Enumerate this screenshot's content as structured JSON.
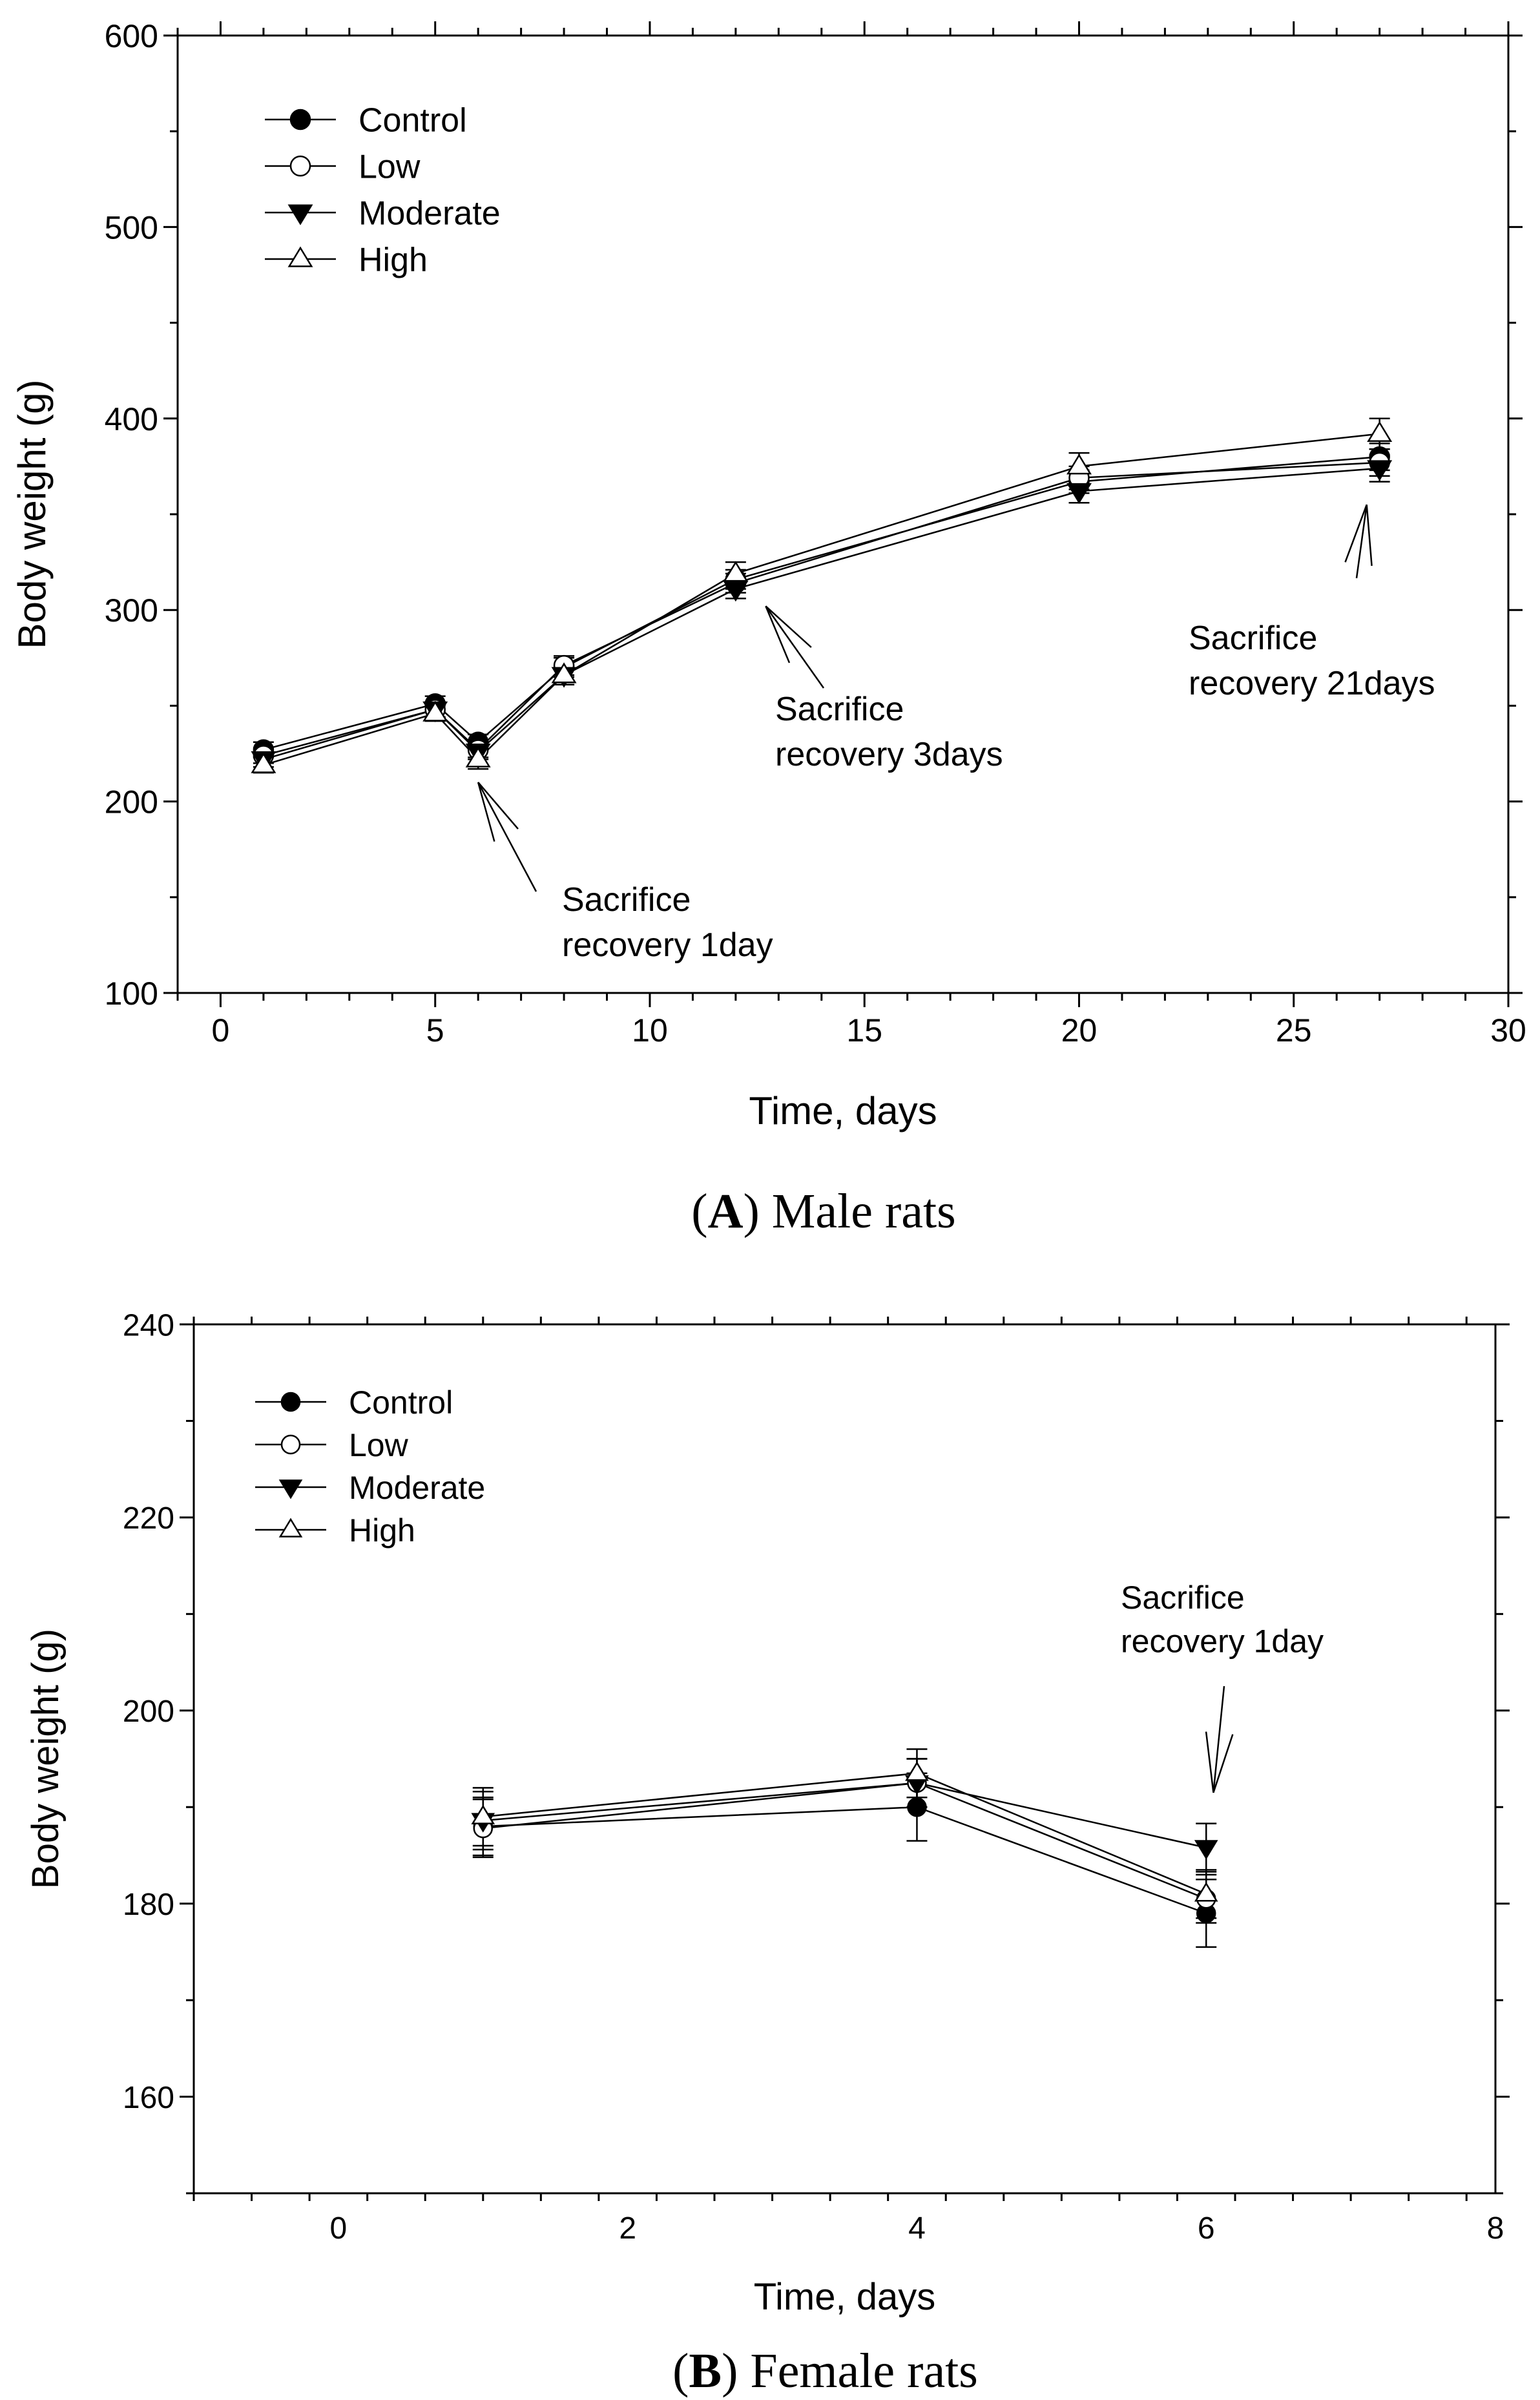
{
  "chart_data": [
    {
      "panel": "A",
      "type": "line",
      "caption_letter": "A",
      "caption_text": ") Male rats",
      "xlabel": "Time, days",
      "ylabel": "Body weight (g)",
      "xlim": [
        -1,
        30
      ],
      "ylim": [
        100,
        600
      ],
      "xticks": [
        0,
        5,
        10,
        15,
        20,
        25,
        30
      ],
      "yticks": [
        100,
        200,
        300,
        400,
        500,
        600
      ],
      "x": [
        1,
        5,
        6,
        8,
        12,
        20,
        27
      ],
      "series": [
        {
          "name": "Control",
          "marker": "circle-filled",
          "values": [
            227,
            251,
            231,
            270,
            316,
            367,
            380
          ],
          "err": [
            4,
            4,
            4,
            5,
            5,
            6,
            7
          ]
        },
        {
          "name": "Low",
          "marker": "circle-open",
          "values": [
            224,
            248,
            227,
            271,
            314,
            369,
            377
          ],
          "err": [
            4,
            4,
            4,
            5,
            5,
            6,
            7
          ]
        },
        {
          "name": "Moderate",
          "marker": "triangle-down-filled",
          "values": [
            222,
            248,
            226,
            266,
            311,
            362,
            374
          ],
          "err": [
            4,
            4,
            4,
            5,
            5,
            6,
            7
          ]
        },
        {
          "name": "High",
          "marker": "triangle-up-open",
          "values": [
            219,
            246,
            222,
            266,
            319,
            375,
            392
          ],
          "err": [
            4,
            4,
            5,
            5,
            6,
            7,
            8
          ]
        }
      ],
      "annotations": [
        {
          "line1": "Sacrifice",
          "line2": "recovery 1day",
          "target_x": 6,
          "target_y": 210
        },
        {
          "line1": "Sacrifice",
          "line2": "recovery 3days",
          "target_x": 12.7,
          "target_y": 302
        },
        {
          "line1": "Sacrifice",
          "line2": "recovery 21days",
          "target_x": 26.7,
          "target_y": 355
        }
      ]
    },
    {
      "panel": "B",
      "type": "line",
      "caption_letter": "B",
      "caption_text": ") Female rats",
      "xlabel": "Time, days",
      "ylabel": "Body weight (g)",
      "xlim": [
        -1,
        8
      ],
      "ylim": [
        150,
        240
      ],
      "xticks": [
        0,
        2,
        4,
        6,
        8
      ],
      "yticks": [
        160,
        180,
        200,
        220,
        240
      ],
      "x": [
        1,
        4,
        6
      ],
      "series": [
        {
          "name": "Control",
          "marker": "circle-filled",
          "values": [
            188,
            190,
            179
          ],
          "err": [
            3,
            3.5,
            3.5
          ]
        },
        {
          "name": "Low",
          "marker": "circle-open",
          "values": [
            187.8,
            192.5,
            180.5
          ],
          "err": [
            3,
            2.5,
            2.5
          ]
        },
        {
          "name": "Moderate",
          "marker": "triangle-down-filled",
          "values": [
            188.6,
            192.5,
            185.8
          ],
          "err": [
            3,
            2.5,
            2.5
          ]
        },
        {
          "name": "High",
          "marker": "triangle-up-open",
          "values": [
            189,
            193.5,
            181
          ],
          "err": [
            3,
            2.5,
            2.5
          ]
        }
      ],
      "annotations": [
        {
          "line1": "Sacrifice",
          "line2": "recovery 1day",
          "target_x": 6.05,
          "target_y": 191.5
        }
      ]
    }
  ]
}
